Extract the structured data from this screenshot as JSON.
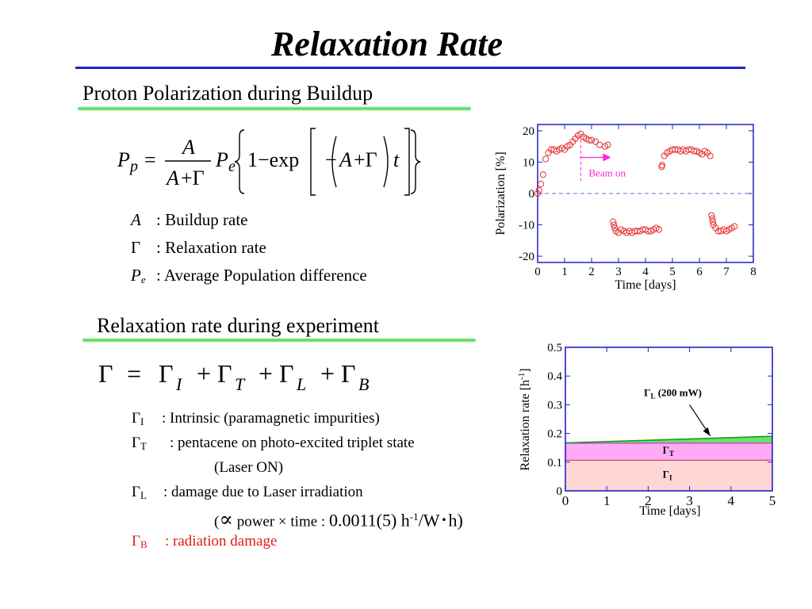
{
  "title": "Relaxation Rate",
  "section1": {
    "heading": "Proton Polarization during Buildup",
    "defs": [
      {
        "symbol": "A",
        "sub": "",
        "text": ": Buildup rate"
      },
      {
        "symbol": "Γ",
        "sub": "",
        "text": ": Relaxation rate"
      },
      {
        "symbol": "P",
        "sub": "e",
        "text": ": Average Population difference"
      }
    ]
  },
  "section2": {
    "heading": "Relaxation rate during experiment",
    "defs": [
      {
        "symbol": "Γ",
        "sub": "I",
        "text": ": Intrinsic (paramagnetic impurities)",
        "cont": ""
      },
      {
        "symbol": "Γ",
        "sub": "T",
        "text": ": pentacene on photo-excited triplet state",
        "cont": "(Laser ON)"
      },
      {
        "symbol": "Γ",
        "sub": "L",
        "text": ": damage due to Laser irradiation",
        "cont": ""
      },
      {
        "symbol": "Γ",
        "sub": "B",
        "text": ": radiation damage",
        "cont": ""
      }
    ],
    "proportional_note": {
      "prefix": "(",
      "symbol": "∝",
      "text1": "power × time :",
      "value": "0.0011(5) h",
      "exp": "-1",
      "text2": "/W",
      "dot": "･",
      "text3": "h)"
    }
  },
  "colors": {
    "title_rule": "#1f23c8",
    "underline": "#3fd63f",
    "red_text": "#e01b1b",
    "series_red": "#e23030",
    "arrow_magenta": "#ff22dd"
  },
  "chart_data": [
    {
      "type": "scatter",
      "xlabel": "Time [days]",
      "ylabel": "Polarization [%]",
      "xlim": [
        0,
        8
      ],
      "ylim": [
        -22,
        22
      ],
      "xticks": [
        0,
        1,
        2,
        3,
        4,
        5,
        6,
        7,
        8
      ],
      "yticks": [
        -20,
        -10,
        0,
        10,
        20
      ],
      "reference_line_y": 0,
      "beam_on_x": 1.6,
      "annotation": "Beam on",
      "series": [
        {
          "x": [
            0.0,
            0.05,
            0.12,
            0.2,
            0.3,
            0.4,
            0.5,
            0.6,
            0.7,
            0.8,
            0.9,
            1.0,
            1.1,
            1.2,
            1.3,
            1.4,
            1.5,
            1.6,
            1.7,
            1.8,
            1.9,
            2.0,
            2.15,
            2.3,
            2.5,
            2.6,
            2.8,
            2.83,
            2.86,
            2.9,
            3.0,
            3.1,
            3.2,
            3.3,
            3.4,
            3.5,
            3.6,
            3.7,
            3.8,
            3.9,
            4.0,
            4.1,
            4.2,
            4.3,
            4.4,
            4.5,
            4.6,
            4.62,
            4.7,
            4.8,
            4.9,
            5.0,
            5.1,
            5.2,
            5.3,
            5.4,
            5.5,
            5.6,
            5.7,
            5.8,
            5.9,
            6.0,
            6.1,
            6.2,
            6.3,
            6.4,
            6.45,
            6.48,
            6.5,
            6.52,
            6.6,
            6.7,
            6.8,
            6.9,
            7.0,
            7.1,
            7.2,
            7.3
          ],
          "y": [
            0,
            1,
            3,
            6,
            11,
            13,
            14,
            14,
            13.5,
            14,
            14.5,
            14,
            15,
            15.5,
            16.5,
            17.5,
            18.5,
            19,
            18,
            17.5,
            17,
            17,
            16.5,
            15.5,
            15,
            15.5,
            -9,
            -10,
            -11,
            -12,
            -12.5,
            -11.5,
            -12,
            -12.5,
            -12,
            -12.5,
            -12,
            -12,
            -12,
            -11.5,
            -11.5,
            -12,
            -12,
            -11.5,
            -11,
            -11.5,
            8.5,
            9,
            12,
            13,
            13.5,
            14,
            14,
            14,
            13.5,
            14,
            13.5,
            14,
            14,
            13.5,
            13.5,
            13,
            12.5,
            13.5,
            13,
            12,
            -7,
            -8,
            -9,
            -10,
            -11,
            -12,
            -12,
            -11.5,
            -12,
            -11.5,
            -11,
            -10.5
          ]
        }
      ]
    },
    {
      "type": "area",
      "xlabel": "Time [days]",
      "ylabel": "Relaxation rate [h-1]",
      "xlim": [
        0,
        5
      ],
      "ylim": [
        0,
        0.5
      ],
      "xticks": [
        0,
        1,
        2,
        3,
        4,
        5
      ],
      "yticks": [
        0,
        0.1,
        0.2,
        0.3,
        0.4,
        0.5
      ],
      "series": [
        {
          "name": "ΓI",
          "x": [
            0,
            5
          ],
          "y": [
            0.108,
            0.108
          ],
          "color": "#ffd6d6",
          "line": "#c8102e"
        },
        {
          "name": "ΓT",
          "x": [
            0,
            5
          ],
          "y": [
            0.167,
            0.167
          ],
          "color": "#ffaaf5",
          "line": "#e000d0"
        },
        {
          "name": "ΓL (200 mW)",
          "x": [
            0,
            5
          ],
          "y": [
            0.167,
            0.19
          ],
          "color": "#6be06b",
          "line": "#1e9a1e"
        }
      ],
      "annotation": "ΓL (200 mW)",
      "annotation_target": {
        "x": 3.5,
        "y": 0.183
      }
    }
  ]
}
